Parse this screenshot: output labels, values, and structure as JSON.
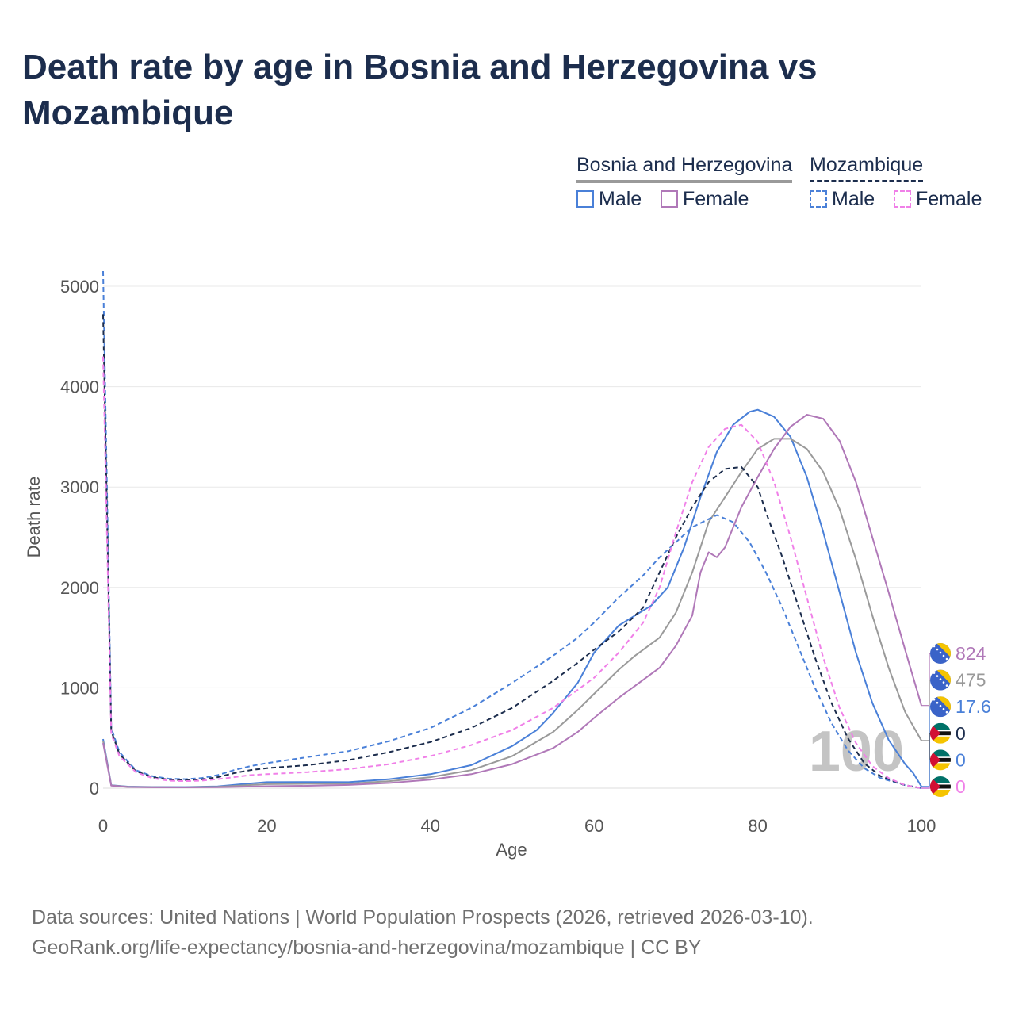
{
  "title": "Death rate by age in Bosnia and Herzegovina vs Mozambique",
  "legend": {
    "groups": [
      {
        "name": "Bosnia and Herzegovina",
        "style": "solid",
        "color": "#9a9a9a",
        "items": [
          {
            "label": "Male",
            "color": "#4a80d8"
          },
          {
            "label": "Female",
            "color": "#b078b8"
          }
        ]
      },
      {
        "name": "Mozambique",
        "style": "dashed",
        "color": "#1c2d4d",
        "items": [
          {
            "label": "Male",
            "color": "#4a80d8"
          },
          {
            "label": "Female",
            "color": "#f080e8"
          }
        ]
      }
    ]
  },
  "chart_data": {
    "type": "line",
    "title": "Death rate by age in Bosnia and Herzegovina vs Mozambique",
    "xlabel": "Age",
    "ylabel": "Death rate",
    "xlim": [
      0,
      100
    ],
    "ylim": [
      0,
      5200
    ],
    "xticks": [
      0,
      20,
      40,
      60,
      80,
      100
    ],
    "yticks": [
      0,
      1000,
      2000,
      3000,
      4000,
      5000
    ],
    "grid": true,
    "watermark": "100",
    "series": [
      {
        "name": "Bosnia and Herzegovina Male",
        "country": "Bosnia and Herzegovina",
        "sex": "Male",
        "color": "#4a80d8",
        "dash": false,
        "points": [
          [
            0,
            490
          ],
          [
            1,
            30
          ],
          [
            3,
            16
          ],
          [
            6,
            12
          ],
          [
            10,
            11
          ],
          [
            14,
            18
          ],
          [
            17,
            40
          ],
          [
            20,
            60
          ],
          [
            25,
            62
          ],
          [
            30,
            60
          ],
          [
            35,
            90
          ],
          [
            40,
            140
          ],
          [
            45,
            230
          ],
          [
            50,
            420
          ],
          [
            53,
            580
          ],
          [
            55,
            750
          ],
          [
            58,
            1050
          ],
          [
            60,
            1350
          ],
          [
            63,
            1620
          ],
          [
            65,
            1720
          ],
          [
            67,
            1820
          ],
          [
            69,
            2000
          ],
          [
            71,
            2400
          ],
          [
            73,
            2900
          ],
          [
            75,
            3350
          ],
          [
            77,
            3620
          ],
          [
            79,
            3750
          ],
          [
            80,
            3770
          ],
          [
            82,
            3700
          ],
          [
            84,
            3500
          ],
          [
            86,
            3100
          ],
          [
            88,
            2550
          ],
          [
            90,
            1950
          ],
          [
            92,
            1350
          ],
          [
            94,
            850
          ],
          [
            96,
            480
          ],
          [
            98,
            240
          ],
          [
            99,
            150
          ],
          [
            100,
            17.6
          ]
        ]
      },
      {
        "name": "Bosnia and Herzegovina Total",
        "country": "Bosnia and Herzegovina",
        "sex": "Total",
        "color": "#9a9a9a",
        "dash": false,
        "points": [
          [
            0,
            470
          ],
          [
            1,
            28
          ],
          [
            3,
            14
          ],
          [
            6,
            10
          ],
          [
            10,
            9
          ],
          [
            14,
            14
          ],
          [
            17,
            28
          ],
          [
            20,
            40
          ],
          [
            25,
            44
          ],
          [
            30,
            46
          ],
          [
            35,
            70
          ],
          [
            40,
            110
          ],
          [
            45,
            180
          ],
          [
            50,
            320
          ],
          [
            55,
            560
          ],
          [
            58,
            780
          ],
          [
            60,
            940
          ],
          [
            63,
            1180
          ],
          [
            65,
            1320
          ],
          [
            68,
            1500
          ],
          [
            70,
            1750
          ],
          [
            72,
            2150
          ],
          [
            74,
            2650
          ],
          [
            76,
            2900
          ],
          [
            78,
            3150
          ],
          [
            80,
            3380
          ],
          [
            82,
            3480
          ],
          [
            84,
            3480
          ],
          [
            86,
            3380
          ],
          [
            88,
            3150
          ],
          [
            90,
            2780
          ],
          [
            92,
            2280
          ],
          [
            94,
            1720
          ],
          [
            96,
            1200
          ],
          [
            98,
            760
          ],
          [
            100,
            475
          ]
        ]
      },
      {
        "name": "Bosnia and Herzegovina Female",
        "country": "Bosnia and Herzegovina",
        "sex": "Female",
        "color": "#b078b8",
        "dash": false,
        "points": [
          [
            0,
            450
          ],
          [
            1,
            25
          ],
          [
            3,
            12
          ],
          [
            6,
            9
          ],
          [
            10,
            8
          ],
          [
            14,
            10
          ],
          [
            17,
            15
          ],
          [
            20,
            20
          ],
          [
            25,
            24
          ],
          [
            30,
            32
          ],
          [
            35,
            52
          ],
          [
            40,
            85
          ],
          [
            45,
            140
          ],
          [
            50,
            240
          ],
          [
            55,
            400
          ],
          [
            58,
            560
          ],
          [
            60,
            700
          ],
          [
            63,
            900
          ],
          [
            65,
            1020
          ],
          [
            68,
            1200
          ],
          [
            70,
            1420
          ],
          [
            72,
            1720
          ],
          [
            73,
            2150
          ],
          [
            74,
            2350
          ],
          [
            75,
            2300
          ],
          [
            76,
            2400
          ],
          [
            78,
            2800
          ],
          [
            80,
            3100
          ],
          [
            82,
            3380
          ],
          [
            84,
            3600
          ],
          [
            86,
            3720
          ],
          [
            88,
            3680
          ],
          [
            90,
            3460
          ],
          [
            92,
            3050
          ],
          [
            94,
            2500
          ],
          [
            96,
            1950
          ],
          [
            98,
            1380
          ],
          [
            100,
            824
          ]
        ]
      },
      {
        "name": "Mozambique Male",
        "country": "Mozambique",
        "sex": "Male",
        "color": "#4a80d8",
        "dash": true,
        "points": [
          [
            0,
            5150
          ],
          [
            1,
            600
          ],
          [
            2,
            360
          ],
          [
            4,
            180
          ],
          [
            6,
            120
          ],
          [
            8,
            95
          ],
          [
            10,
            90
          ],
          [
            12,
            100
          ],
          [
            14,
            130
          ],
          [
            16,
            180
          ],
          [
            18,
            220
          ],
          [
            20,
            250
          ],
          [
            25,
            310
          ],
          [
            30,
            370
          ],
          [
            35,
            470
          ],
          [
            40,
            600
          ],
          [
            45,
            800
          ],
          [
            50,
            1050
          ],
          [
            55,
            1320
          ],
          [
            58,
            1500
          ],
          [
            60,
            1650
          ],
          [
            63,
            1900
          ],
          [
            66,
            2120
          ],
          [
            68,
            2300
          ],
          [
            70,
            2450
          ],
          [
            72,
            2600
          ],
          [
            75,
            2720
          ],
          [
            77,
            2650
          ],
          [
            79,
            2450
          ],
          [
            81,
            2150
          ],
          [
            83,
            1800
          ],
          [
            85,
            1400
          ],
          [
            87,
            1000
          ],
          [
            89,
            650
          ],
          [
            91,
            380
          ],
          [
            93,
            200
          ],
          [
            95,
            100
          ],
          [
            98,
            30
          ],
          [
            100,
            0
          ]
        ]
      },
      {
        "name": "Mozambique Total",
        "country": "Mozambique",
        "sex": "Total",
        "color": "#1c2d4d",
        "dash": true,
        "points": [
          [
            0,
            4720
          ],
          [
            1,
            570
          ],
          [
            2,
            340
          ],
          [
            4,
            170
          ],
          [
            6,
            110
          ],
          [
            8,
            85
          ],
          [
            10,
            80
          ],
          [
            12,
            88
          ],
          [
            14,
            110
          ],
          [
            16,
            150
          ],
          [
            18,
            180
          ],
          [
            20,
            200
          ],
          [
            25,
            230
          ],
          [
            30,
            280
          ],
          [
            35,
            360
          ],
          [
            40,
            460
          ],
          [
            45,
            600
          ],
          [
            50,
            800
          ],
          [
            55,
            1070
          ],
          [
            58,
            1250
          ],
          [
            60,
            1380
          ],
          [
            63,
            1560
          ],
          [
            66,
            1800
          ],
          [
            68,
            2150
          ],
          [
            70,
            2500
          ],
          [
            72,
            2800
          ],
          [
            74,
            3050
          ],
          [
            76,
            3180
          ],
          [
            78,
            3200
          ],
          [
            80,
            3000
          ],
          [
            81,
            2750
          ],
          [
            83,
            2300
          ],
          [
            85,
            1800
          ],
          [
            87,
            1300
          ],
          [
            89,
            850
          ],
          [
            91,
            500
          ],
          [
            93,
            250
          ],
          [
            95,
            120
          ],
          [
            98,
            30
          ],
          [
            100,
            0
          ]
        ]
      },
      {
        "name": "Mozambique Female",
        "country": "Mozambique",
        "sex": "Female",
        "color": "#f080e8",
        "dash": true,
        "points": [
          [
            0,
            4300
          ],
          [
            1,
            540
          ],
          [
            2,
            320
          ],
          [
            4,
            160
          ],
          [
            6,
            100
          ],
          [
            8,
            75
          ],
          [
            10,
            70
          ],
          [
            12,
            75
          ],
          [
            14,
            90
          ],
          [
            16,
            110
          ],
          [
            18,
            130
          ],
          [
            20,
            140
          ],
          [
            25,
            160
          ],
          [
            30,
            190
          ],
          [
            35,
            240
          ],
          [
            40,
            320
          ],
          [
            45,
            430
          ],
          [
            50,
            580
          ],
          [
            55,
            800
          ],
          [
            58,
            980
          ],
          [
            60,
            1100
          ],
          [
            63,
            1350
          ],
          [
            66,
            1650
          ],
          [
            68,
            2000
          ],
          [
            70,
            2550
          ],
          [
            72,
            3050
          ],
          [
            74,
            3400
          ],
          [
            76,
            3580
          ],
          [
            78,
            3620
          ],
          [
            80,
            3450
          ],
          [
            82,
            3050
          ],
          [
            84,
            2500
          ],
          [
            86,
            1900
          ],
          [
            88,
            1300
          ],
          [
            90,
            800
          ],
          [
            92,
            450
          ],
          [
            94,
            220
          ],
          [
            96,
            100
          ],
          [
            98,
            30
          ],
          [
            100,
            0
          ]
        ]
      }
    ],
    "end_labels": [
      {
        "value": "824",
        "series": "Bosnia and Herzegovina Female",
        "country": "Bosnia and Herzegovina",
        "color": "#b078b8"
      },
      {
        "value": "475",
        "series": "Bosnia and Herzegovina Total",
        "country": "Bosnia and Herzegovina",
        "color": "#9a9a9a"
      },
      {
        "value": "17.6",
        "series": "Bosnia and Herzegovina Male",
        "country": "Bosnia and Herzegovina",
        "color": "#4a80d8"
      },
      {
        "value": "0",
        "series": "Mozambique Total",
        "country": "Mozambique",
        "color": "#1c2d4d"
      },
      {
        "value": "0",
        "series": "Mozambique Male",
        "country": "Mozambique",
        "color": "#4a80d8"
      },
      {
        "value": "0",
        "series": "Mozambique Female",
        "country": "Mozambique",
        "color": "#f080e8"
      }
    ]
  },
  "footer": {
    "source": "Data sources: United Nations | World Population Prospects (2026, retrieved 2026-03-10).",
    "credit": "GeoRank.org/life-expectancy/bosnia-and-herzegovina/mozambique | CC BY"
  }
}
